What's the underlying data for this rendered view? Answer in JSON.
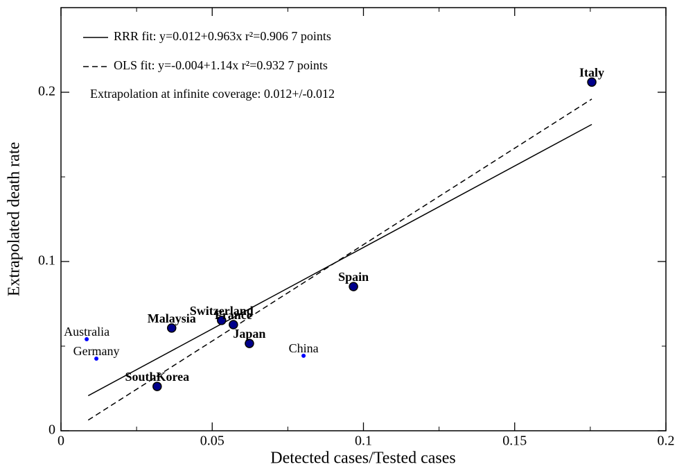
{
  "chart_data": {
    "type": "scatter",
    "x_label": "Detected cases/Tested cases",
    "y_label": "Extrapolated death rate",
    "xlim": [
      0,
      0.2
    ],
    "ylim": [
      0,
      0.25
    ],
    "xticks": [
      0,
      0.05,
      0.1,
      0.15,
      0.2
    ],
    "yticks": [
      0,
      0.1,
      0.2
    ],
    "xminor": [
      0.025,
      0.075,
      0.125,
      0.175
    ],
    "yminor": [
      0.05,
      0.15
    ],
    "series": [
      {
        "marker": "large",
        "color": "#00008b",
        "labels": [
          "Italy",
          "Spain",
          "Switzerland",
          "France",
          "Malaysia",
          "Japan",
          "SouthKorea"
        ],
        "x": [
          0.1755,
          0.0967,
          0.0531,
          0.057,
          0.0366,
          0.0623,
          0.0318
        ],
        "values": [
          0.206,
          0.0852,
          0.0652,
          0.0627,
          0.0607,
          0.0516,
          0.0262
        ]
      },
      {
        "marker": "small",
        "color": "#0000ff",
        "labels": [
          "Australia",
          "Germany",
          "China"
        ],
        "x": [
          0.0085,
          0.0117,
          0.0802
        ],
        "values": [
          0.0541,
          0.0426,
          0.0443
        ]
      }
    ],
    "lines": [
      {
        "name": "RRR fit: y=0.012+0.963x r²=0.906 7 points",
        "style": "solid",
        "x": [
          0.009,
          0.1755
        ],
        "values": [
          0.0207,
          0.181
        ]
      },
      {
        "name": "OLS fit: y=-0.004+1.14x r²=0.932 7 points",
        "style": "dashed",
        "x": [
          0.009,
          0.1755
        ],
        "values": [
          0.0063,
          0.196
        ]
      }
    ],
    "annotation": "Extrapolation at infinite coverage: 0.012+/-0.012"
  }
}
